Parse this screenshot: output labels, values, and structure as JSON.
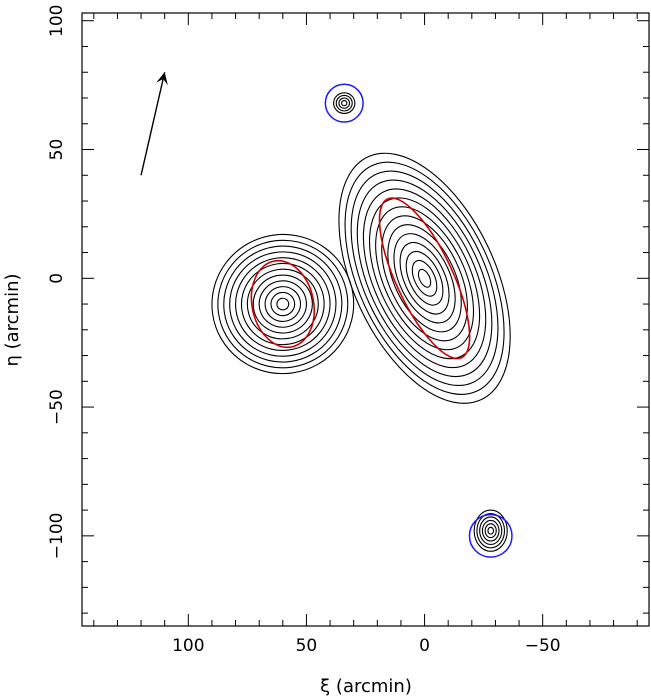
{
  "chart_data": {
    "type": "contour",
    "xlabel": "ξ (arcmin)",
    "ylabel": "η (arcmin)",
    "xlim": [
      145,
      -95
    ],
    "ylim": [
      -135,
      103
    ],
    "x_ticks": [
      100,
      50,
      0,
      -50
    ],
    "x_tick_labels": [
      "100",
      "50",
      "0",
      "−50"
    ],
    "y_ticks": [
      100,
      50,
      0,
      -50,
      -100
    ],
    "y_tick_labels": [
      "100",
      "50",
      "0",
      "−50",
      "−100"
    ],
    "grid": false,
    "contour_color": "#000000",
    "ellipse_color": "#cc0000",
    "circle_color": "#1a1aff",
    "sources": [
      {
        "x": 0,
        "y": 0,
        "rx": 30,
        "ry": 52,
        "tilt": -25,
        "levels": 14
      },
      {
        "x": 60,
        "y": -10,
        "rx": 30,
        "ry": 27,
        "tilt": -8,
        "levels": 12
      },
      {
        "x": 34,
        "y": 68,
        "rx": 4.5,
        "ry": 4,
        "tilt": 0,
        "levels": 4
      },
      {
        "x": -28,
        "y": -98,
        "rx": 7,
        "ry": 8,
        "tilt": 0,
        "levels": 6
      }
    ],
    "red_ellipses": [
      {
        "x": 0,
        "y": 0,
        "rx": 12,
        "ry": 34,
        "tilt": -25
      },
      {
        "x": 60,
        "y": -10,
        "rx": 13,
        "ry": 17,
        "tilt": -12
      }
    ],
    "blue_circles": [
      {
        "x": 34,
        "y": 68,
        "r": 8
      },
      {
        "x": -28,
        "y": -100,
        "r": 9
      }
    ],
    "arrow": {
      "from": [
        120,
        40
      ],
      "to": [
        110,
        80
      ]
    }
  }
}
